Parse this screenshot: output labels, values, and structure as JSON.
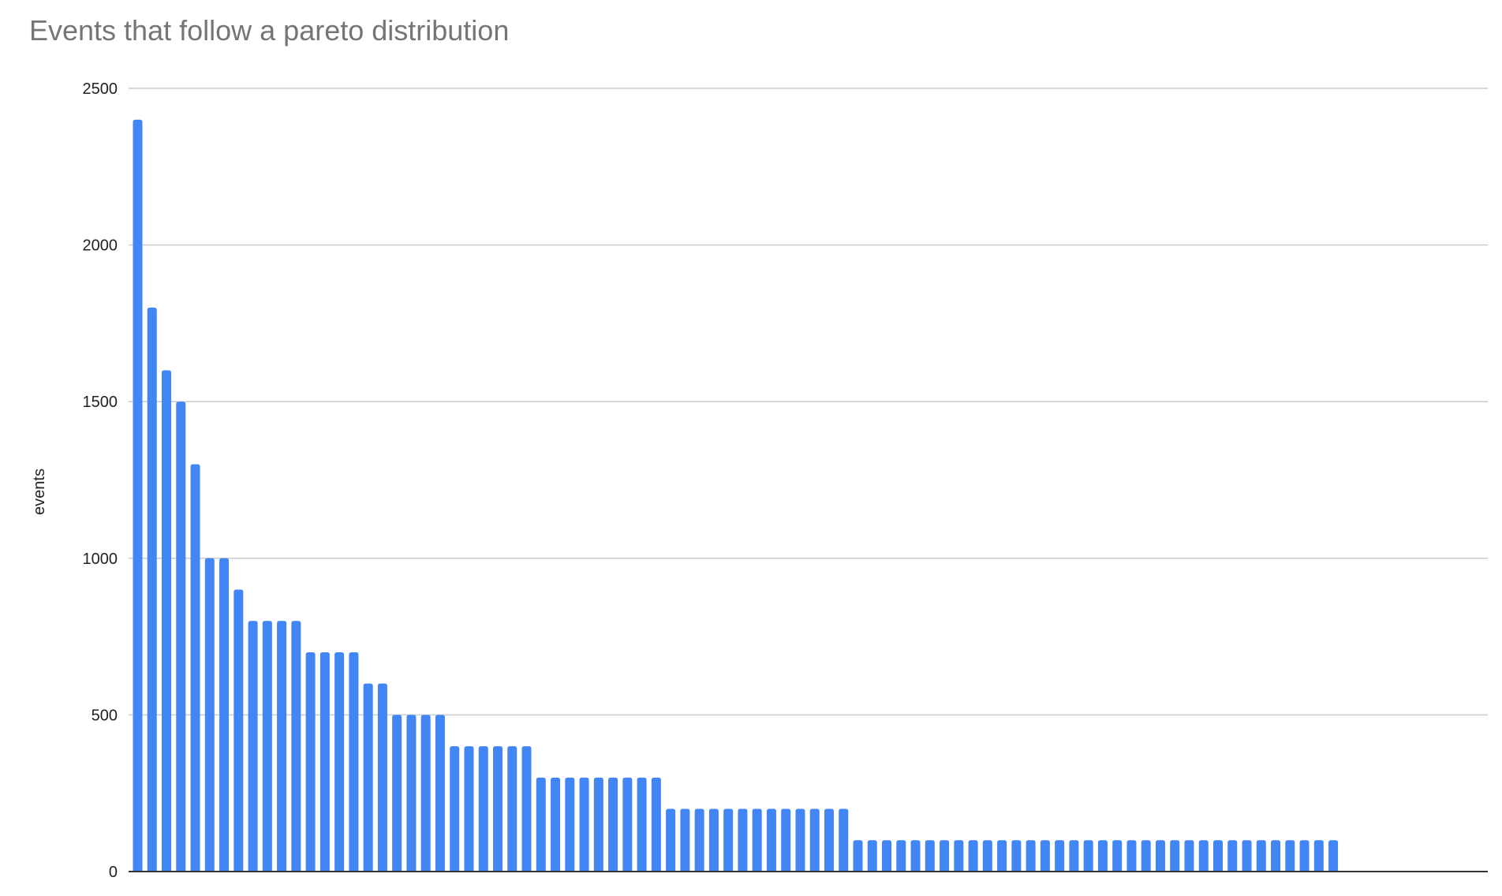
{
  "chart_data": {
    "type": "bar",
    "title": "Events that follow a pareto distribution",
    "xlabel": "",
    "ylabel": "events",
    "ylim": [
      0,
      2500
    ],
    "yticks": [
      0,
      500,
      1000,
      1500,
      2000,
      2500
    ],
    "grid": true,
    "bar_color": "#4285f4",
    "values": [
      2400,
      1800,
      1600,
      1500,
      1300,
      1000,
      1000,
      900,
      800,
      800,
      800,
      800,
      700,
      700,
      700,
      700,
      600,
      600,
      500,
      500,
      500,
      500,
      400,
      400,
      400,
      400,
      400,
      400,
      300,
      300,
      300,
      300,
      300,
      300,
      300,
      300,
      300,
      200,
      200,
      200,
      200,
      200,
      200,
      200,
      200,
      200,
      200,
      200,
      200,
      200,
      100,
      100,
      100,
      100,
      100,
      100,
      100,
      100,
      100,
      100,
      100,
      100,
      100,
      100,
      100,
      100,
      100,
      100,
      100,
      100,
      100,
      100,
      100,
      100,
      100,
      100,
      100,
      100,
      100,
      100,
      100,
      100,
      100,
      100
    ]
  }
}
